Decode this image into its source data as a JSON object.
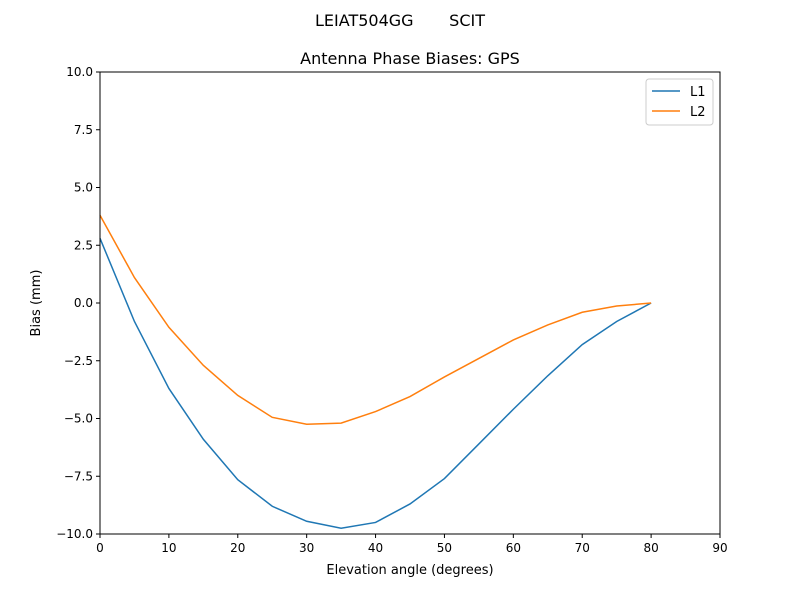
{
  "chart_data": {
    "type": "line",
    "suptitle": "LEIAT504GG       SCIT",
    "title": "Antenna Phase Biases: GPS",
    "xlabel": "Elevation angle (degrees)",
    "ylabel": "Bias (mm)",
    "xlim": [
      0,
      90
    ],
    "ylim": [
      -10,
      10
    ],
    "xticks": [
      0,
      10,
      20,
      30,
      40,
      50,
      60,
      70,
      80,
      90
    ],
    "yticks": [
      -10.0,
      -7.5,
      -5.0,
      -2.5,
      0.0,
      2.5,
      5.0,
      7.5,
      10.0
    ],
    "xtick_labels": [
      "0",
      "10",
      "20",
      "30",
      "40",
      "50",
      "60",
      "70",
      "80",
      "90"
    ],
    "ytick_labels": [
      "−10.0",
      "−7.5",
      "−5.0",
      "−2.5",
      "0.0",
      "2.5",
      "5.0",
      "7.5",
      "10.0"
    ],
    "grid": false,
    "legend_position": "top-right",
    "x": [
      0,
      5,
      10,
      15,
      20,
      25,
      30,
      35,
      40,
      45,
      50,
      55,
      60,
      65,
      70,
      75,
      80
    ],
    "series": [
      {
        "name": "L1",
        "color": "#1f77b4",
        "values": [
          2.8,
          -0.8,
          -3.7,
          -5.9,
          -7.65,
          -8.8,
          -9.45,
          -9.75,
          -9.5,
          -8.7,
          -7.6,
          -6.1,
          -4.6,
          -3.15,
          -1.8,
          -0.8,
          0.0
        ]
      },
      {
        "name": "L2",
        "color": "#ff7f0e",
        "values": [
          3.8,
          1.1,
          -1.05,
          -2.7,
          -4.0,
          -4.95,
          -5.25,
          -5.2,
          -4.7,
          -4.05,
          -3.2,
          -2.4,
          -1.6,
          -0.95,
          -0.4,
          -0.13,
          0.0
        ]
      }
    ]
  }
}
